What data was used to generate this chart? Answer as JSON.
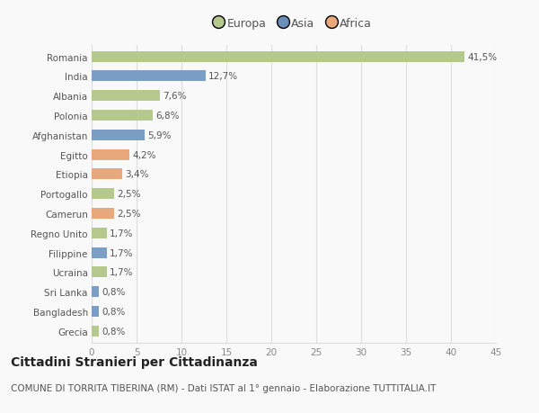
{
  "countries": [
    "Romania",
    "India",
    "Albania",
    "Polonia",
    "Afghanistan",
    "Egitto",
    "Etiopia",
    "Portogallo",
    "Camerun",
    "Regno Unito",
    "Filippine",
    "Ucraina",
    "Sri Lanka",
    "Bangladesh",
    "Grecia"
  ],
  "values": [
    41.5,
    12.7,
    7.6,
    6.8,
    5.9,
    4.2,
    3.4,
    2.5,
    2.5,
    1.7,
    1.7,
    1.7,
    0.8,
    0.8,
    0.8
  ],
  "labels": [
    "41,5%",
    "12,7%",
    "7,6%",
    "6,8%",
    "5,9%",
    "4,2%",
    "3,4%",
    "2,5%",
    "2,5%",
    "1,7%",
    "1,7%",
    "1,7%",
    "0,8%",
    "0,8%",
    "0,8%"
  ],
  "continents": [
    "Europa",
    "Asia",
    "Europa",
    "Europa",
    "Asia",
    "Africa",
    "Africa",
    "Europa",
    "Africa",
    "Europa",
    "Asia",
    "Europa",
    "Asia",
    "Asia",
    "Europa"
  ],
  "colors": {
    "Europa": "#b5c98e",
    "Asia": "#7b9fc4",
    "Africa": "#e8a87c"
  },
  "legend_colors": {
    "Europa": "#b5c98e",
    "Asia": "#6b8fba",
    "Africa": "#e8a87c"
  },
  "xlim": [
    0,
    45
  ],
  "xticks": [
    0,
    5,
    10,
    15,
    20,
    25,
    30,
    35,
    40,
    45
  ],
  "title": "Cittadini Stranieri per Cittadinanza",
  "subtitle": "COMUNE DI TORRITA TIBERINA (RM) - Dati ISTAT al 1° gennaio - Elaborazione TUTTITALIA.IT",
  "background_color": "#f9f9f9",
  "grid_color": "#dddddd",
  "bar_height": 0.55,
  "label_fontsize": 7.5,
  "tick_fontsize": 7.5,
  "title_fontsize": 10,
  "subtitle_fontsize": 7.5
}
